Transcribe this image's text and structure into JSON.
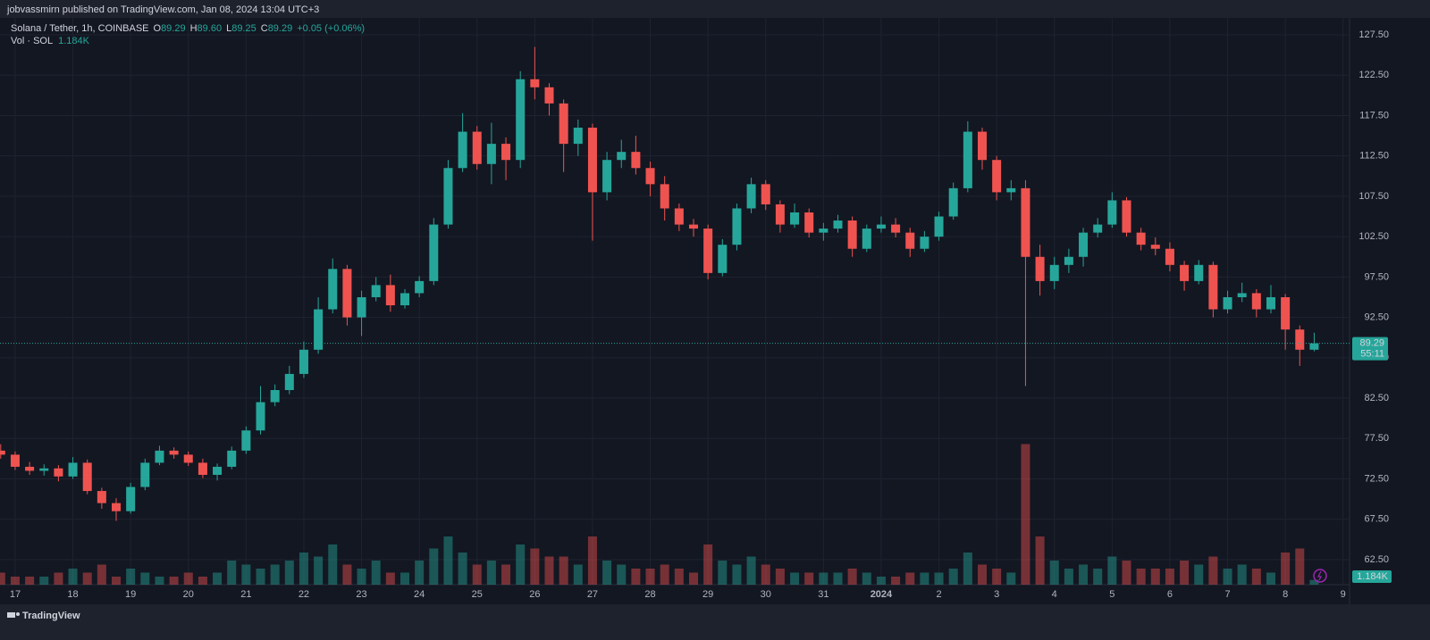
{
  "header": {
    "publisher": "jobvassmirn published on TradingView.com, Jan 08, 2024 13:04 UTC+3"
  },
  "footer": {
    "brand": "TradingView"
  },
  "chart_data": {
    "type": "candlestick",
    "title": "Solana / Tether, 1h, COINBASE",
    "ohlc_legend": [
      {
        "key": "O",
        "value": "89.29"
      },
      {
        "key": "H",
        "value": "89.60"
      },
      {
        "key": "L",
        "value": "89.25"
      },
      {
        "key": "C",
        "value": "89.29"
      }
    ],
    "change": "+0.05 (+0.06%)",
    "volume_name": "Vol · SOL",
    "volume_label": "1.184K",
    "countdown": "55:11",
    "up_color": "#26a69a",
    "down_color": "#ef5350",
    "grid": true,
    "xlim": [
      -6.3,
      554.7
    ],
    "ylim": [
      59.4,
      129.38
    ],
    "vlim": [
      0,
      40
    ],
    "xticks": [
      {
        "value": 0,
        "label": "17"
      },
      {
        "value": 24,
        "label": "18"
      },
      {
        "value": 48,
        "label": "19"
      },
      {
        "value": 72,
        "label": "20"
      },
      {
        "value": 96,
        "label": "21"
      },
      {
        "value": 120,
        "label": "22"
      },
      {
        "value": 144,
        "label": "23"
      },
      {
        "value": 168,
        "label": "24"
      },
      {
        "value": 192,
        "label": "25"
      },
      {
        "value": 216,
        "label": "26"
      },
      {
        "value": 240,
        "label": "27"
      },
      {
        "value": 264,
        "label": "28"
      },
      {
        "value": 288,
        "label": "29"
      },
      {
        "value": 312,
        "label": "30"
      },
      {
        "value": 336,
        "label": "31"
      },
      {
        "value": 360,
        "label": "2024"
      },
      {
        "value": 384,
        "label": "2"
      },
      {
        "value": 408,
        "label": "3"
      },
      {
        "value": 432,
        "label": "4"
      },
      {
        "value": 456,
        "label": "5"
      },
      {
        "value": 480,
        "label": "6"
      },
      {
        "value": 504,
        "label": "7"
      },
      {
        "value": 528,
        "label": "8"
      },
      {
        "value": 552,
        "label": "9"
      }
    ],
    "yticks": [
      {
        "value": 62.5,
        "label": "62.50"
      },
      {
        "value": 67.5,
        "label": "67.50"
      },
      {
        "value": 72.5,
        "label": "72.50"
      },
      {
        "value": 77.5,
        "label": "77.50"
      },
      {
        "value": 82.5,
        "label": "82.50"
      },
      {
        "value": 87.5,
        "label": "87.50"
      },
      {
        "value": 92.5,
        "label": "92.50"
      },
      {
        "value": 97.5,
        "label": "97.50"
      },
      {
        "value": 102.5,
        "label": "102.50"
      },
      {
        "value": 107.5,
        "label": "107.50"
      },
      {
        "value": 112.5,
        "label": "112.50"
      },
      {
        "value": 117.5,
        "label": "117.50"
      },
      {
        "value": 122.5,
        "label": "122.50"
      },
      {
        "value": 127.5,
        "label": "127.50"
      }
    ],
    "x": [
      -6,
      0,
      6,
      12,
      18,
      24,
      30,
      36,
      42,
      48,
      54,
      60,
      66,
      72,
      78,
      84,
      90,
      96,
      102,
      108,
      114,
      120,
      126,
      132,
      138,
      144,
      150,
      156,
      162,
      168,
      174,
      180,
      186,
      192,
      198,
      204,
      210,
      216,
      222,
      228,
      234,
      240,
      246,
      252,
      258,
      264,
      270,
      276,
      282,
      288,
      294,
      300,
      306,
      312,
      318,
      324,
      330,
      336,
      342,
      348,
      354,
      360,
      366,
      372,
      378,
      384,
      390,
      396,
      402,
      408,
      414,
      420,
      426,
      432,
      438,
      444,
      450,
      456,
      462,
      468,
      474,
      480,
      486,
      492,
      498,
      504,
      510,
      516,
      522,
      528,
      534,
      540
    ],
    "open": [
      76,
      75.5,
      74,
      73.5,
      73.8,
      72.8,
      74.5,
      71,
      69.5,
      68.5,
      71.5,
      74.5,
      76,
      75.5,
      74.5,
      73,
      74,
      76,
      78.5,
      82,
      83.5,
      85.5,
      88.5,
      93.5,
      98.5,
      92.5,
      95,
      96.5,
      94,
      95.5,
      97,
      104,
      111,
      115.5,
      111.5,
      114,
      112,
      122,
      121,
      119,
      114,
      116,
      108,
      112,
      113,
      111,
      109,
      106,
      104,
      103.5,
      98,
      101.5,
      106,
      109,
      106.5,
      104,
      105.5,
      103,
      103.5,
      104.5,
      101,
      103.5,
      104,
      103,
      101,
      102.5,
      105,
      108.5,
      115.5,
      112,
      108,
      108.5,
      100,
      97,
      99,
      100,
      103,
      104,
      107,
      103,
      101.5,
      101,
      99,
      97,
      99,
      93.5,
      95,
      95.5,
      93.5,
      95,
      91,
      88.5
    ],
    "high": [
      76.8,
      75.9,
      74.6,
      74.3,
      74.2,
      75.2,
      74.9,
      71.4,
      70.1,
      72,
      75,
      76.6,
      76.4,
      75.9,
      75,
      74.4,
      76.5,
      79,
      84,
      84.2,
      86.5,
      89.5,
      95,
      99.8,
      99,
      95.8,
      97.5,
      97.8,
      96,
      97.6,
      104.8,
      112,
      117.8,
      116.2,
      116.6,
      114.8,
      123,
      126,
      121.5,
      119.5,
      117,
      116.5,
      113,
      114.5,
      115,
      111.8,
      110,
      106.6,
      104.7,
      104,
      102.2,
      106.6,
      109.8,
      109.5,
      107,
      106.6,
      106,
      104.2,
      105.2,
      105,
      104,
      105,
      104.8,
      103.6,
      103.2,
      105.6,
      109.2,
      116.8,
      116,
      112.5,
      109.5,
      109.5,
      101.5,
      100,
      101,
      103.6,
      104.8,
      108,
      107.4,
      103.6,
      102.4,
      101.8,
      99.5,
      99.6,
      99.4,
      95.8,
      96.8,
      96,
      96.5,
      95.4,
      91.5,
      90.6
    ],
    "low": [
      75,
      73.6,
      73,
      72.9,
      72.2,
      72.5,
      70.6,
      68.8,
      67.3,
      68.2,
      71.1,
      74.2,
      75,
      74.1,
      72.6,
      72.3,
      73.7,
      75.6,
      78,
      81.5,
      83,
      85,
      88,
      93,
      91.5,
      90.2,
      94.5,
      93.2,
      93.6,
      95,
      96.5,
      103.5,
      110.5,
      110.8,
      109,
      109.5,
      111,
      119.5,
      117.5,
      110.5,
      112.5,
      102,
      107,
      111,
      110.2,
      107.5,
      104.5,
      103.2,
      102.5,
      97.2,
      97.6,
      100.8,
      105.4,
      105.8,
      103,
      103.6,
      102.4,
      102,
      103,
      100,
      100.6,
      103,
      102.4,
      100,
      100.6,
      102,
      104.6,
      108,
      110.8,
      107,
      107,
      84,
      95.2,
      96,
      98,
      98.8,
      102.4,
      103.6,
      102.5,
      100.8,
      100.2,
      98.2,
      95.8,
      96.6,
      92.5,
      93,
      94.4,
      92.5,
      93,
      88.5,
      86.5,
      88.3
    ],
    "close": [
      75.5,
      74,
      73.5,
      73.8,
      72.8,
      74.5,
      71,
      69.5,
      68.5,
      71.5,
      74.5,
      76,
      75.5,
      74.5,
      73,
      74,
      76,
      78.5,
      82,
      83.5,
      85.5,
      88.5,
      93.5,
      98.5,
      92.5,
      95,
      96.5,
      94,
      95.5,
      97,
      104,
      111,
      115.5,
      111.5,
      114,
      112,
      122,
      121,
      119,
      114,
      116,
      108,
      112,
      113,
      111,
      109,
      106,
      104,
      103.5,
      98,
      101.5,
      106,
      109,
      106.5,
      104,
      105.5,
      103,
      103.5,
      104.5,
      101,
      103.5,
      104,
      103,
      101,
      102.5,
      105,
      108.5,
      115.5,
      112,
      108,
      108.5,
      100,
      97,
      99,
      100,
      103,
      104,
      107,
      103,
      101.5,
      101,
      99,
      97,
      99,
      93.5,
      95,
      95.5,
      93.5,
      95,
      91,
      88.5,
      89.29
    ],
    "volume": [
      3,
      2,
      2,
      2,
      3,
      4,
      3,
      5,
      2,
      4,
      3,
      2,
      2,
      3,
      2,
      3,
      6,
      5,
      4,
      5,
      6,
      8,
      7,
      10,
      5,
      4,
      6,
      3,
      3,
      6,
      9,
      12,
      8,
      5,
      6,
      5,
      10,
      9,
      7,
      7,
      5,
      12,
      6,
      5,
      4,
      4,
      5,
      4,
      3,
      10,
      6,
      5,
      7,
      5,
      4,
      3,
      3,
      3,
      3,
      4,
      3,
      2,
      2,
      3,
      3,
      3,
      4,
      8,
      5,
      4,
      3,
      35,
      12,
      6,
      4,
      5,
      4,
      7,
      6,
      4,
      4,
      4,
      6,
      5,
      7,
      4,
      5,
      4,
      3,
      8,
      9,
      1.184
    ]
  }
}
